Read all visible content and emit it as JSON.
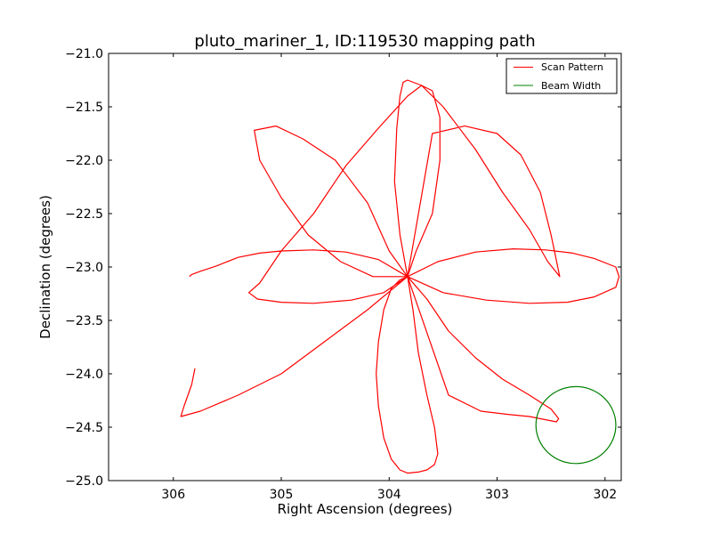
{
  "chart_data": {
    "type": "line",
    "title": "pluto_mariner_1, ID:119530 mapping path",
    "xlabel": "Right Ascension (degrees)",
    "ylabel": "Declination (degrees)",
    "xlim": [
      306.6,
      301.85
    ],
    "ylim": [
      -25.0,
      -21.0
    ],
    "x_inverted": true,
    "xticks": [
      306,
      305,
      304,
      303,
      302
    ],
    "xtick_labels": [
      "306",
      "305",
      "304",
      "303",
      "302"
    ],
    "yticks": [
      -21.0,
      -21.5,
      -22.0,
      -22.5,
      -23.0,
      -23.5,
      -24.0,
      -24.5,
      -25.0
    ],
    "ytick_labels": [
      "−21.0",
      "−21.5",
      "−22.0",
      "−22.5",
      "−23.0",
      "−23.5",
      "−24.0",
      "−24.5",
      "−25.0"
    ],
    "grid": false,
    "legend_placement": "top-right",
    "series": [
      {
        "name": "Scan Pattern",
        "color": "#ff0000",
        "x": [
          305.85,
          305.83,
          305.75,
          305.6,
          305.4,
          305.2,
          305.0,
          304.7,
          304.4,
          304.1,
          303.83,
          303.55,
          303.2,
          302.85,
          302.55,
          302.3,
          302.1,
          301.9,
          301.87,
          301.9,
          302.1,
          302.35,
          302.7,
          303.1,
          303.5,
          303.83,
          304.05,
          304.35,
          304.7,
          305.0,
          305.22,
          305.3,
          305.2,
          305.0,
          304.7,
          304.4,
          304.1,
          303.83,
          303.7,
          303.6,
          303.53,
          303.53,
          303.6,
          303.75,
          303.83,
          303.9,
          303.95,
          303.93,
          303.9,
          303.87,
          303.83,
          303.7,
          303.5,
          303.2,
          302.95,
          302.7,
          302.53,
          302.42,
          302.5,
          302.6,
          302.78,
          303.0,
          303.3,
          303.6,
          303.83,
          304.0,
          304.2,
          304.5,
          304.8,
          305.05,
          305.25,
          305.2,
          305.0,
          304.75,
          304.45,
          304.15,
          303.83,
          303.78,
          303.73,
          303.65,
          303.58,
          303.55,
          303.58,
          303.65,
          303.73,
          303.83,
          303.9,
          303.98,
          304.05,
          304.1,
          304.12,
          304.1,
          304.05,
          303.98,
          303.9,
          303.83,
          303.65,
          303.45,
          303.2,
          302.95,
          302.7,
          302.5,
          302.43,
          302.45,
          302.55,
          302.7,
          302.9,
          303.15,
          303.45,
          303.83,
          304.2,
          304.6,
          305.0,
          305.4,
          305.75,
          305.93,
          305.9,
          305.83,
          305.8
        ],
        "y": [
          -23.09,
          -23.07,
          -23.04,
          -22.99,
          -22.91,
          -22.87,
          -22.85,
          -22.84,
          -22.86,
          -22.93,
          -23.09,
          -22.95,
          -22.86,
          -22.83,
          -22.84,
          -22.87,
          -22.92,
          -23.0,
          -23.09,
          -23.19,
          -23.28,
          -23.33,
          -23.34,
          -23.31,
          -23.24,
          -23.09,
          -23.24,
          -23.31,
          -23.34,
          -23.33,
          -23.3,
          -23.24,
          -23.15,
          -22.85,
          -22.5,
          -22.05,
          -21.7,
          -21.4,
          -21.3,
          -21.35,
          -21.6,
          -22.0,
          -22.5,
          -22.85,
          -23.09,
          -22.7,
          -22.2,
          -21.7,
          -21.4,
          -21.27,
          -21.25,
          -21.3,
          -21.5,
          -21.9,
          -22.3,
          -22.65,
          -22.95,
          -23.09,
          -22.7,
          -22.3,
          -21.95,
          -21.75,
          -21.68,
          -21.75,
          -23.09,
          -22.85,
          -22.4,
          -22.0,
          -21.8,
          -21.68,
          -21.72,
          -22.0,
          -22.35,
          -22.7,
          -22.95,
          -23.09,
          -23.09,
          -23.4,
          -23.8,
          -24.2,
          -24.5,
          -24.75,
          -24.85,
          -24.9,
          -24.92,
          -24.93,
          -24.9,
          -24.8,
          -24.6,
          -24.3,
          -24.0,
          -23.7,
          -23.4,
          -23.2,
          -23.12,
          -23.09,
          -23.3,
          -23.6,
          -23.85,
          -24.05,
          -24.2,
          -24.33,
          -24.42,
          -24.45,
          -24.43,
          -24.4,
          -24.38,
          -24.35,
          -24.2,
          -23.09,
          -23.4,
          -23.7,
          -24.0,
          -24.2,
          -24.35,
          -24.4,
          -24.3,
          -24.1,
          -23.95
        ]
      },
      {
        "name": "Beam Width",
        "color": "#008000",
        "center_x": 302.27,
        "center_y": -24.48,
        "radius_deg_ra": 0.37,
        "radius_deg_dec": 0.36
      }
    ]
  }
}
